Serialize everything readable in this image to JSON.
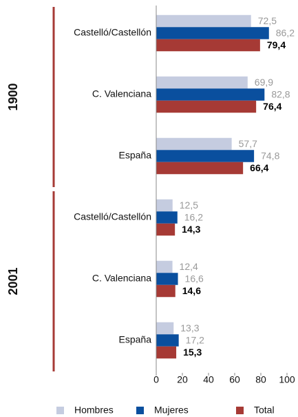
{
  "chart_data": {
    "type": "bar",
    "orientation": "horizontal",
    "groups": [
      {
        "name": "1900",
        "categories": [
          "Castelló/Castellón",
          "C. Valenciana",
          "España"
        ]
      },
      {
        "name": "2001",
        "categories": [
          "Castelló/Castellón",
          "C. Valenciana",
          "España"
        ]
      }
    ],
    "series": [
      {
        "name": "Hombres",
        "color": "#c5cce0",
        "values": [
          72.5,
          69.9,
          57.7,
          12.5,
          12.4,
          13.3
        ],
        "value_labels": [
          "72,5",
          "69,9",
          "57,7",
          "12,5",
          "12,4",
          "13,3"
        ]
      },
      {
        "name": "Mujeres",
        "color": "#0a4f9e",
        "values": [
          86.2,
          82.8,
          74.8,
          16.2,
          16.6,
          17.2
        ],
        "value_labels": [
          "86,2",
          "82,8",
          "74,8",
          "16,2",
          "16,6",
          "17,2"
        ]
      },
      {
        "name": "Total",
        "color": "#a63a35",
        "values": [
          79.4,
          76.4,
          66.4,
          14.3,
          14.6,
          15.3
        ],
        "value_labels": [
          "79,4",
          "76,4",
          "66,4",
          "14,3",
          "14,6",
          "15,3"
        ]
      }
    ],
    "xlim": [
      0,
      100
    ],
    "xticks": [
      0,
      20,
      40,
      60,
      80,
      100
    ],
    "grid": false,
    "legend": "bottom"
  }
}
